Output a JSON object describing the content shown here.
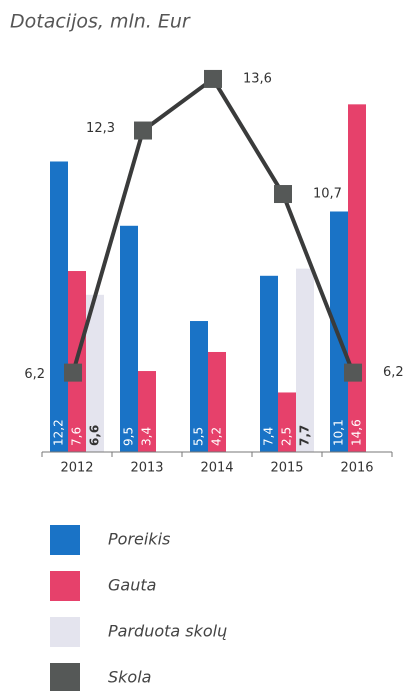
{
  "chart_data": {
    "type": "bar",
    "title": "Dotacijos, mln. Eur",
    "categories": [
      "2012",
      "2013",
      "2014",
      "2015",
      "2016"
    ],
    "series": [
      {
        "name": "Poreikis",
        "color": "#1a73c6",
        "values": [
          12.2,
          9.5,
          5.5,
          7.4,
          10.1
        ],
        "value_labels": [
          "12,2",
          "9,5",
          "5,5",
          "7,4",
          "10,1"
        ]
      },
      {
        "name": "Gauta",
        "color": "#e6416b",
        "values": [
          7.6,
          3.4,
          4.2,
          2.5,
          14.6
        ],
        "value_labels": [
          "7,6",
          "3,4",
          "4,2",
          "2,5",
          "14,6"
        ]
      },
      {
        "name": "Parduota skolų",
        "color": "#e4e4ee",
        "values": [
          6.6,
          null,
          null,
          7.7,
          null
        ],
        "value_labels": [
          "6,6",
          null,
          null,
          "7,7",
          null
        ]
      },
      {
        "name": "Skola",
        "color": "#3a3b3b",
        "type": "line",
        "axis": "y2",
        "values": [
          6.2,
          12.3,
          13.6,
          10.7,
          6.2
        ],
        "value_labels": [
          "6,2",
          "12,3",
          "13,6",
          "10,7",
          "6,2"
        ]
      }
    ],
    "ylim": [
      0,
      16
    ],
    "y2lim": [
      4.2,
      13.8
    ]
  }
}
